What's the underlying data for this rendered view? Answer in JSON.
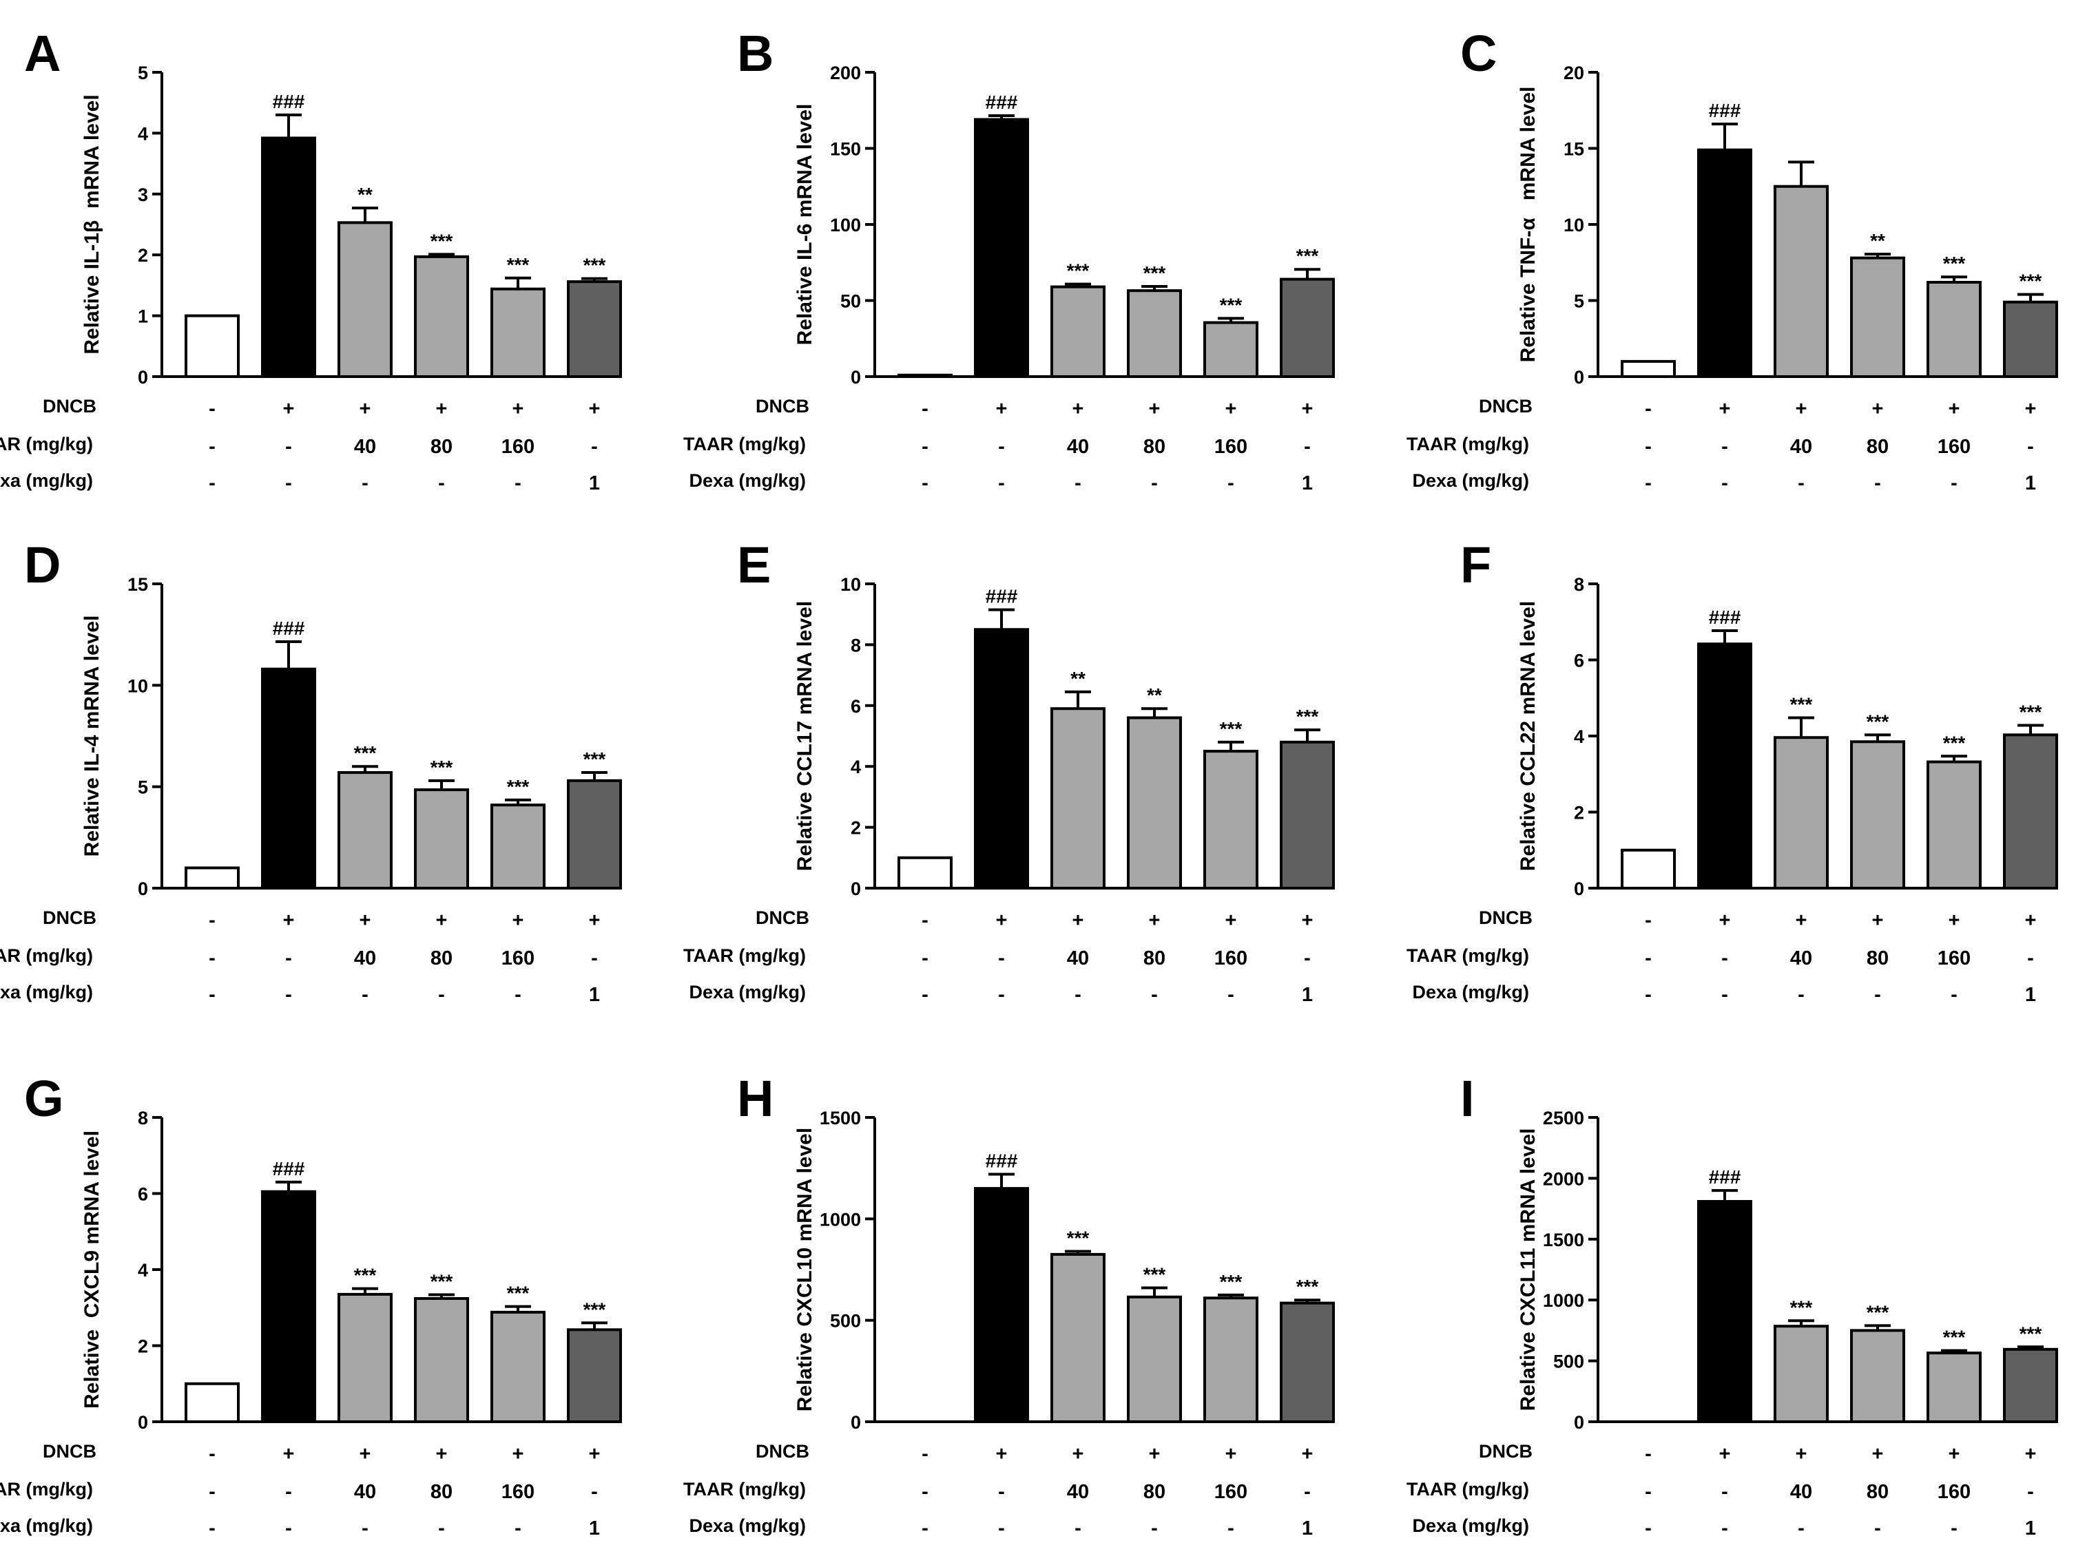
{
  "colors": {
    "control": "#ffffff",
    "dncb": "#000000",
    "taar": "#a6a6a7",
    "dexa": "#606060",
    "axis": "#000000"
  },
  "row_labels": [
    "DNCB",
    "TAAR (mg/kg)",
    "Dexa (mg/kg)"
  ],
  "treatment_table": [
    [
      "-",
      "+",
      "+",
      "+",
      "+",
      "+"
    ],
    [
      "-",
      "-",
      "40",
      "80",
      "160",
      "-"
    ],
    [
      "-",
      "-",
      "-",
      "-",
      "-",
      "1"
    ]
  ],
  "chart_data": [
    {
      "panel": "A",
      "type": "bar",
      "ylabel": "Relative IL-1β  mRNA level",
      "ylim": [
        0,
        5
      ],
      "yticks": [
        0,
        1,
        2,
        3,
        4,
        5
      ],
      "values": [
        1,
        3.92,
        2.53,
        1.97,
        1.44,
        1.56
      ],
      "errors": [
        0,
        0.38,
        0.24,
        0.04,
        0.18,
        0.05
      ],
      "significance": [
        "",
        "###",
        "**",
        "***",
        "***",
        "***"
      ]
    },
    {
      "panel": "B",
      "type": "bar",
      "ylabel": "Relative IL-6 mRNA level",
      "ylim": [
        0,
        200
      ],
      "yticks": [
        0,
        50,
        100,
        150,
        200
      ],
      "values": [
        1,
        169,
        59,
        56.5,
        35.5,
        64
      ],
      "errors": [
        0,
        2.5,
        1.8,
        2.8,
        2.8,
        6.5
      ],
      "significance": [
        "",
        "###",
        "***",
        "***",
        "***",
        "***"
      ]
    },
    {
      "panel": "C",
      "type": "bar",
      "ylabel": "Relative TNF-α   mRNA level",
      "ylim": [
        0,
        20
      ],
      "yticks": [
        0,
        5,
        10,
        15,
        20
      ],
      "values": [
        1,
        14.9,
        12.5,
        7.8,
        6.2,
        4.9
      ],
      "errors": [
        0,
        1.7,
        1.6,
        0.25,
        0.35,
        0.5
      ],
      "significance": [
        "",
        "###",
        "",
        "**",
        "***",
        "***"
      ]
    },
    {
      "panel": "D",
      "type": "bar",
      "ylabel": "Relative IL-4 mRNA level",
      "ylim": [
        0,
        15
      ],
      "yticks": [
        0,
        5,
        10,
        15
      ],
      "values": [
        1,
        10.8,
        5.7,
        4.85,
        4.1,
        5.3
      ],
      "errors": [
        0,
        1.35,
        0.3,
        0.45,
        0.25,
        0.4
      ],
      "significance": [
        "",
        "###",
        "***",
        "***",
        "***",
        "***"
      ]
    },
    {
      "panel": "E",
      "type": "bar",
      "ylabel": "Relative CCL17 mRNA level",
      "ylim": [
        0,
        10
      ],
      "yticks": [
        0,
        2,
        4,
        6,
        8,
        10
      ],
      "values": [
        1,
        8.5,
        5.9,
        5.6,
        4.5,
        4.8
      ],
      "errors": [
        0,
        0.65,
        0.55,
        0.3,
        0.3,
        0.4
      ],
      "significance": [
        "",
        "###",
        "**",
        "**",
        "***",
        "***"
      ]
    },
    {
      "panel": "F",
      "type": "bar",
      "ylabel": "Relative CCL22 mRNA level",
      "ylim": [
        0,
        8
      ],
      "yticks": [
        0,
        2,
        4,
        6,
        8
      ],
      "values": [
        1,
        6.42,
        3.96,
        3.85,
        3.32,
        4.03
      ],
      "errors": [
        0,
        0.35,
        0.52,
        0.18,
        0.15,
        0.25
      ],
      "significance": [
        "",
        "###",
        "***",
        "***",
        "***",
        "***"
      ]
    },
    {
      "panel": "G",
      "type": "bar",
      "ylabel": "Relative  CXCL9 mRNA level",
      "ylim": [
        0,
        8
      ],
      "yticks": [
        0,
        2,
        4,
        6,
        8
      ],
      "values": [
        1,
        6.05,
        3.35,
        3.24,
        2.88,
        2.42
      ],
      "errors": [
        0,
        0.25,
        0.15,
        0.1,
        0.15,
        0.18
      ],
      "significance": [
        "",
        "###",
        "***",
        "***",
        "***",
        "***"
      ]
    },
    {
      "panel": "H",
      "type": "bar",
      "ylabel": "Relative CXCL10 mRNA level",
      "ylim": [
        0,
        1500
      ],
      "yticks": [
        0,
        500,
        1000,
        1500
      ],
      "values": [
        0,
        1150,
        825,
        615,
        610,
        585
      ],
      "errors": [
        0,
        70,
        15,
        45,
        15,
        15
      ],
      "significance": [
        "",
        "###",
        "***",
        "***",
        "***",
        "***"
      ]
    },
    {
      "panel": "I",
      "type": "bar",
      "ylabel": "Relative CXCL11 mRNA level",
      "ylim": [
        0,
        2500
      ],
      "yticks": [
        0,
        500,
        1000,
        1500,
        2000,
        2500
      ],
      "values": [
        0,
        1810,
        785,
        750,
        565,
        595
      ],
      "errors": [
        0,
        90,
        45,
        40,
        20,
        20
      ],
      "significance": [
        "",
        "###",
        "***",
        "***",
        "***",
        "***"
      ]
    }
  ]
}
